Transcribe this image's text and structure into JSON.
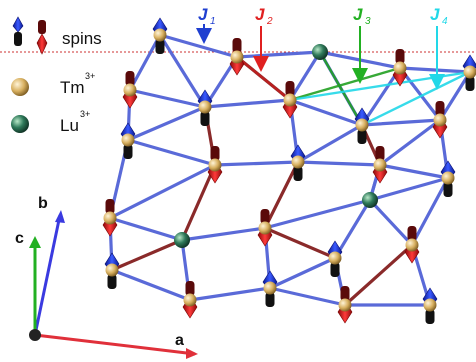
{
  "legend": {
    "spins_label": "spins",
    "tm_base": "Tm",
    "tm_charge": "3+",
    "lu_base": "Lu",
    "lu_charge": "3+"
  },
  "couplings": [
    {
      "letter": "J",
      "sub": "1",
      "color": "#1f3fd0"
    },
    {
      "letter": "J",
      "sub": "2",
      "color": "#e02020"
    },
    {
      "letter": "J",
      "sub": "3",
      "color": "#22b022"
    },
    {
      "letter": "J",
      "sub": "4",
      "color": "#22d8e8"
    }
  ],
  "axes": {
    "a": "a",
    "b": "b",
    "c": "c",
    "a_color": "#e0303a",
    "b_color": "#3a3ae0",
    "c_color": "#22b022"
  },
  "colors": {
    "bond": "#5a6ad8",
    "bond_dark": "#8a2a2a",
    "spin_up": "#1f2fd0",
    "spin_down": "#e01818",
    "tm": "#d8b060",
    "lu": "#2f7a5a",
    "guide_line": "#cc3030"
  }
}
